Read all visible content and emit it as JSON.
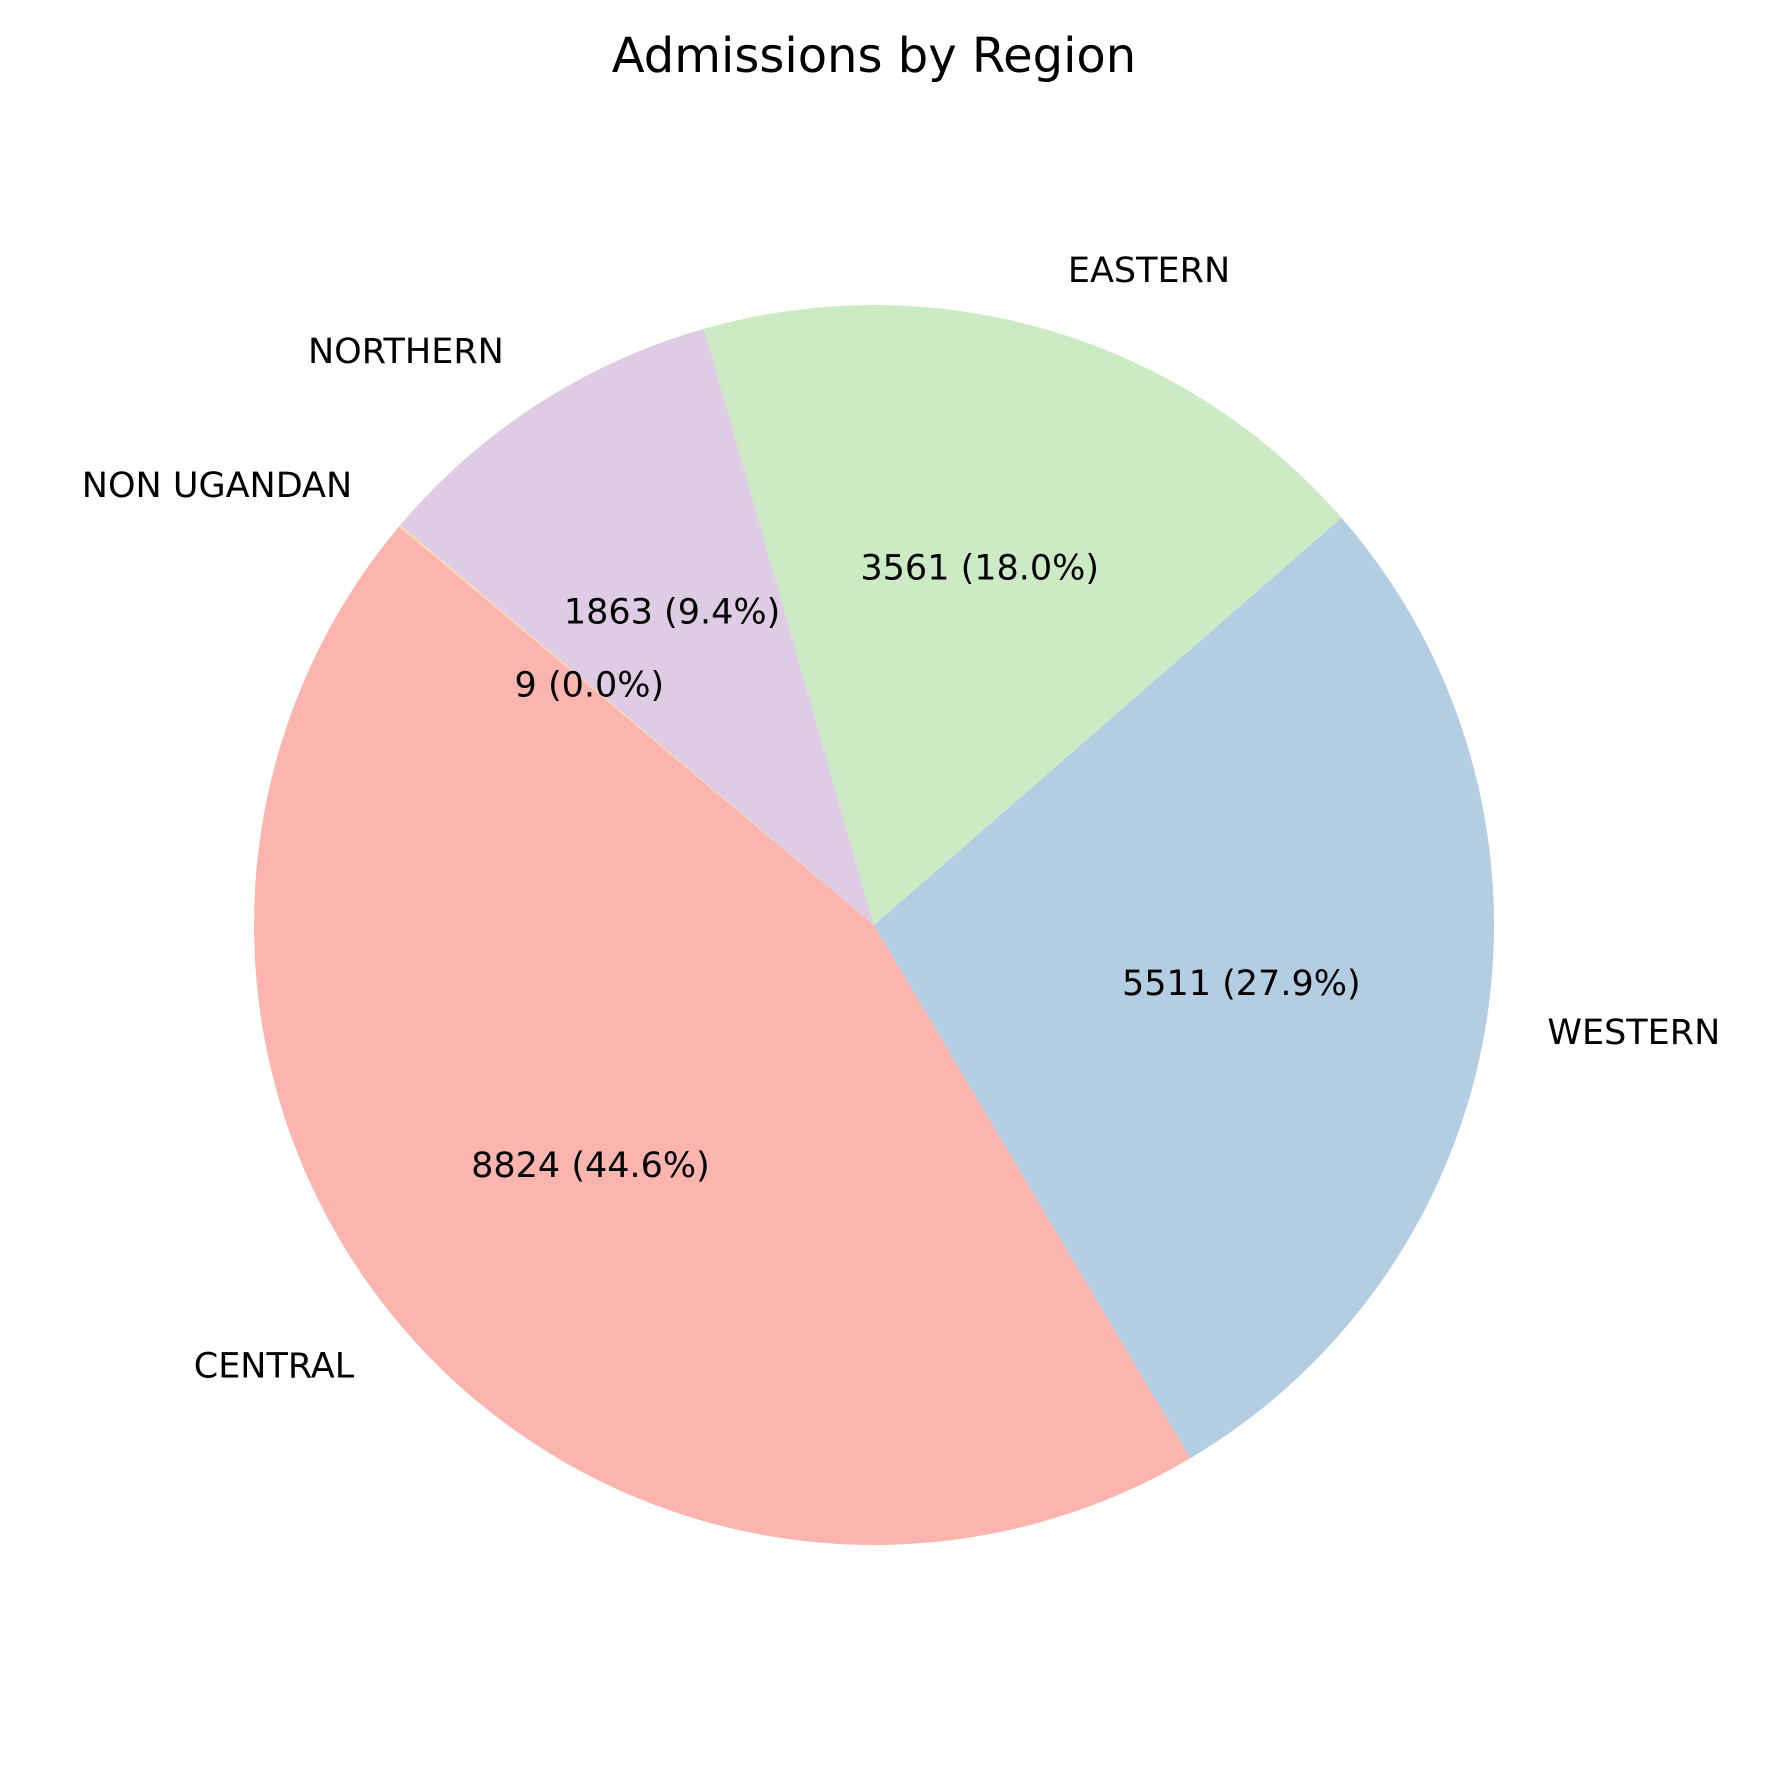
{
  "chart_data": {
    "type": "pie",
    "title": "Admissions by Region",
    "categories": [
      "CENTRAL",
      "WESTERN",
      "EASTERN",
      "NORTHERN",
      "NON UGANDAN"
    ],
    "values": [
      8824,
      5511,
      3561,
      1863,
      9
    ],
    "value_labels": [
      "8824 (44.6%)",
      "5511 (27.9%)",
      "3561 (18.0%)",
      "1863 (9.4%)",
      "9 (0.0%)"
    ],
    "colors": [
      "#fbb4ae",
      "#b3cde3",
      "#ccebc5",
      "#decbe4",
      "#fed9a6"
    ],
    "start_angle_deg": 140,
    "direction": "counterclockwise",
    "legend": "none"
  }
}
